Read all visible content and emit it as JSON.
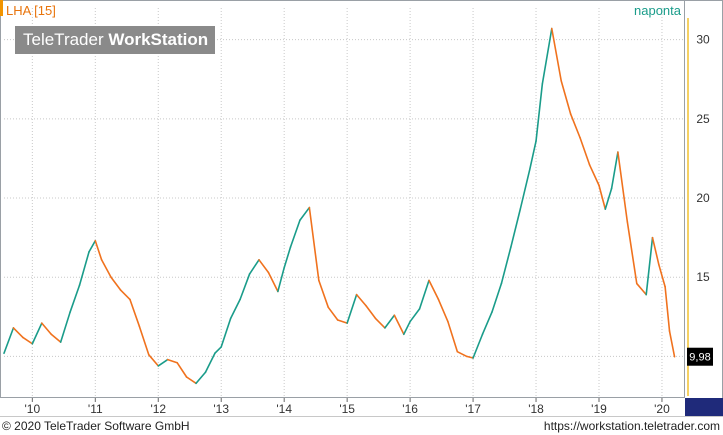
{
  "header": {
    "symbol": "LHA [15]",
    "period": "naponta",
    "symbol_color": "#e8740c",
    "period_color": "#1a9c8a"
  },
  "logo": {
    "light": "TeleTrader ",
    "bold": "WorkStation"
  },
  "footer": {
    "copyright": "© 2020 TeleTrader Software GmbH",
    "url": "https://workstation.teletrader.com"
  },
  "colors": {
    "up": "#1a9c8a",
    "down": "#f0721e",
    "grid": "#c8c8c8",
    "axis_accent": "#f2c230",
    "bottom_bar": "#1f2a7a"
  },
  "chart_data": {
    "type": "line",
    "title": "LHA [15]",
    "xlabel": "",
    "ylabel": "",
    "x_ticks": [
      "'10",
      "'11",
      "'12",
      "'13",
      "'14",
      "'15",
      "'16",
      "'17",
      "'18",
      "'19",
      "'20"
    ],
    "y_ticks": [
      10,
      15,
      20,
      25,
      30
    ],
    "ylim": [
      7.5,
      32
    ],
    "xlim": [
      2009.55,
      2020.35
    ],
    "last_value": 9.98,
    "last_value_label": "9,98",
    "grid": true,
    "series": [
      {
        "color_up": "#1a9c8a",
        "color_down": "#f0721e",
        "x": [
          2009.55,
          2009.7,
          2009.85,
          2010.0,
          2010.15,
          2010.3,
          2010.45,
          2010.6,
          2010.75,
          2010.9,
          2011.0,
          2011.1,
          2011.25,
          2011.4,
          2011.55,
          2011.7,
          2011.85,
          2012.0,
          2012.15,
          2012.3,
          2012.45,
          2012.6,
          2012.75,
          2012.9,
          2013.0,
          2013.15,
          2013.3,
          2013.45,
          2013.6,
          2013.75,
          2013.9,
          2014.0,
          2014.1,
          2014.25,
          2014.4,
          2014.55,
          2014.7,
          2014.85,
          2015.0,
          2015.15,
          2015.3,
          2015.45,
          2015.6,
          2015.75,
          2015.9,
          2016.0,
          2016.15,
          2016.3,
          2016.45,
          2016.6,
          2016.75,
          2016.9,
          2017.0,
          2017.15,
          2017.3,
          2017.45,
          2017.6,
          2017.75,
          2017.9,
          2018.0,
          2018.1,
          2018.25,
          2018.4,
          2018.55,
          2018.7,
          2018.85,
          2019.0,
          2019.1,
          2019.2,
          2019.3,
          2019.45,
          2019.6,
          2019.75,
          2019.85,
          2019.95,
          2020.05,
          2020.12,
          2020.2
        ],
        "y": [
          10.2,
          11.8,
          11.2,
          10.8,
          12.1,
          11.4,
          10.9,
          12.8,
          14.5,
          16.6,
          17.3,
          16.1,
          15.0,
          14.2,
          13.6,
          11.9,
          10.1,
          9.4,
          9.8,
          9.6,
          8.7,
          8.3,
          9.0,
          10.2,
          10.6,
          12.4,
          13.6,
          15.2,
          16.1,
          15.3,
          14.1,
          15.6,
          16.9,
          18.6,
          19.4,
          14.8,
          13.1,
          12.3,
          12.1,
          13.9,
          13.2,
          12.4,
          11.8,
          12.6,
          11.4,
          12.2,
          13.0,
          14.8,
          13.6,
          12.2,
          10.3,
          10.0,
          9.9,
          11.4,
          12.8,
          14.6,
          16.9,
          19.3,
          21.8,
          23.6,
          27.2,
          30.7,
          27.4,
          25.3,
          23.8,
          22.1,
          20.8,
          19.3,
          20.6,
          22.9,
          18.5,
          14.6,
          13.9,
          17.5,
          15.8,
          14.4,
          11.6,
          9.98
        ]
      }
    ]
  }
}
